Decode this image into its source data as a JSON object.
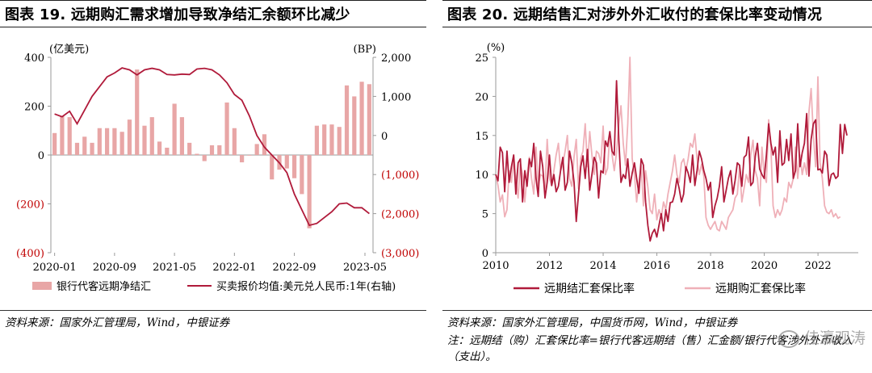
{
  "left": {
    "title": "图表 19. 远期购汇需求增加导致净结汇余额环比减少",
    "source": "资料来源：国家外汇管理局，Wind，中银证券",
    "colors": {
      "bar": "#e8a6a6",
      "line": "#b01a3a"
    },
    "chart_data": {
      "type": "bar+line",
      "left_axis_unit": "(亿美元)",
      "right_axis_unit": "(BP)",
      "left_ylim": [
        -400,
        400
      ],
      "right_ylim": [
        -3000,
        2000
      ],
      "left_ticks": [
        "400",
        "200",
        "0",
        "(200)",
        "(400)"
      ],
      "right_ticks": [
        "2,000",
        "1,000",
        "0",
        "(1,000)",
        "(2,000)",
        "(3,000)"
      ],
      "x_ticks": [
        "2020-01",
        "2020-09",
        "2021-05",
        "2022-01",
        "2022-09",
        "2023-05"
      ],
      "series": [
        {
          "name": "银行代客远期净结汇",
          "axis": "left",
          "kind": "bar",
          "values": [
            90,
            160,
            155,
            50,
            75,
            50,
            110,
            110,
            110,
            95,
            145,
            350,
            120,
            155,
            55,
            30,
            210,
            155,
            50,
            5,
            -25,
            40,
            40,
            215,
            110,
            -30,
            0,
            45,
            85,
            -100,
            -60,
            -55,
            -95,
            -160,
            -300,
            120,
            125,
            125,
            115,
            285,
            240,
            300,
            290
          ]
        },
        {
          "name": "买卖报价均值:美元兑人民币:1年(右轴)",
          "axis": "right",
          "kind": "line",
          "values": [
            550,
            480,
            620,
            300,
            650,
            1000,
            1250,
            1500,
            1600,
            1730,
            1680,
            1550,
            1680,
            1720,
            1680,
            1560,
            1550,
            1570,
            1560,
            1700,
            1720,
            1680,
            1550,
            1350,
            1050,
            900,
            500,
            0,
            -300,
            -500,
            -700,
            -950,
            -1500,
            -1900,
            -2300,
            -2250,
            -2100,
            -1950,
            -1750,
            -1730,
            -1850,
            -1850,
            -2000
          ]
        }
      ]
    }
  },
  "right": {
    "title": "图表 20. 远期结售汇对涉外外汇收付的套保比率变动情况",
    "source": "资料来源：国家外汇管理局，中国货币网，Wind，中银证券",
    "note": "注：远期结（购）汇套保比率=银行代客远期结（售）汇金额/银行代客涉外外币收入（支出）。",
    "colors": {
      "settle": "#b01a3a",
      "purchase": "#efb0b8"
    },
    "chart_data": {
      "type": "line",
      "y_unit": "(%)",
      "ylim": [
        0,
        25
      ],
      "y_ticks": [
        "0",
        "5",
        "10",
        "15",
        "20",
        "25"
      ],
      "xlim": [
        2010,
        2023.5
      ],
      "x_ticks": [
        "2010",
        "2012",
        "2014",
        "2016",
        "2018",
        "2020",
        "2022"
      ],
      "series": [
        {
          "name": "远期结汇套保比率",
          "x_start": 2010,
          "x_step": 0.0833,
          "values": [
            10,
            9.2,
            13.5,
            12.8,
            7.8,
            13,
            9,
            11,
            12.5,
            7.5,
            11.5,
            12,
            6.5,
            10.5,
            8.5,
            12,
            11,
            14,
            9.5,
            7.2,
            13,
            11,
            7,
            9,
            12.5,
            8.6,
            10,
            7.8,
            8.5,
            10.5,
            12.2,
            8,
            9,
            13,
            11.5,
            9,
            4,
            7.5,
            11,
            12.4,
            9.5,
            13.2,
            8,
            10,
            12.2,
            11.5,
            7,
            10.5,
            10.2,
            14.3,
            13.6,
            15.5,
            13,
            12.5,
            22,
            14.5,
            9,
            10,
            9.5,
            12,
            8.5,
            10.2,
            11.5,
            9.5,
            7.6,
            12,
            11.2,
            6.5,
            3.5,
            1.5,
            2.5,
            3,
            2,
            3.5,
            5,
            2.8,
            5.5,
            4,
            6.4,
            6.5,
            7.5,
            9.5,
            8.2,
            6.5,
            7.5,
            11,
            10.2,
            9,
            12.5,
            8.6,
            10.5,
            13,
            12,
            10.5,
            9.5,
            8,
            9,
            4.5,
            6,
            7,
            8.5,
            11,
            6.5,
            8,
            9.5,
            10.5,
            7.5,
            9.2,
            11.5,
            11.2,
            8.5,
            12.2,
            12.5,
            14.8,
            8.6,
            9,
            12.3,
            14,
            10.7,
            10,
            9.5,
            12.5,
            16.5,
            14,
            12.5,
            13.5,
            9,
            15.6,
            11.2,
            11.5,
            14.5,
            11.8,
            15.2,
            9.5,
            10.5,
            16.5,
            11,
            12.8,
            14,
            17.8,
            9.8,
            14.5,
            16.5,
            17,
            10.6,
            10.7,
            10.2,
            13,
            12.5,
            8.6,
            10,
            10.2,
            9.5,
            9.8,
            16.4,
            12.7,
            16.4,
            15
          ]
        },
        {
          "name": "远期购汇套保比率",
          "x_start": 2010,
          "x_step": 0.0833,
          "values": [
            10,
            8.6,
            6.5,
            7.4,
            4.6,
            5.5,
            10.5,
            9,
            12.5,
            9.5,
            7,
            11.5,
            10,
            6.5,
            10,
            12.2,
            9.5,
            7.5,
            13.5,
            8.5,
            10,
            9.8,
            8.2,
            14.5,
            9.5,
            8.6,
            10.5,
            12.5,
            14,
            10.5,
            11.3,
            13,
            15,
            9.5,
            8.5,
            12.3,
            14.5,
            8.2,
            12.1,
            13,
            16.5,
            11,
            15.5,
            12.5,
            10,
            13,
            12.7,
            11.5,
            16.2,
            10,
            10.8,
            15.2,
            12.5,
            10.5,
            12.8,
            16.5,
            18.8,
            14,
            11.2,
            16.5,
            25,
            12,
            10,
            6.5,
            9,
            11.2,
            6,
            10.5,
            8.4,
            5.5,
            5,
            7.5,
            4.2,
            5.5,
            4.5,
            6.5,
            5.5,
            7.5,
            9,
            10.5,
            12.5,
            10,
            9,
            11.5,
            12,
            10.5,
            12,
            14,
            13.5,
            15.2,
            12,
            10,
            11.3,
            9.8,
            4.5,
            3.5,
            3,
            3.5,
            4,
            3,
            2.8,
            4,
            3.5,
            3,
            4.5,
            5,
            5.5,
            7,
            7.5,
            11,
            6.5,
            8.2,
            10,
            9,
            12.5,
            14.4,
            10.5,
            9.5,
            6,
            13.5,
            10,
            9,
            17,
            13.5,
            6,
            4.5,
            5.5,
            4.8,
            5.5,
            7,
            6.5,
            9,
            8.3,
            9.5,
            13.5,
            9.5,
            12.5,
            10,
            11.5,
            10,
            18,
            21,
            15,
            11,
            22.5,
            11.5,
            9.5,
            6,
            5.2,
            5,
            5.5,
            4.6,
            5,
            4.4,
            4.6
          ]
        }
      ]
    }
  },
  "watermark": "佳瀛观涛"
}
